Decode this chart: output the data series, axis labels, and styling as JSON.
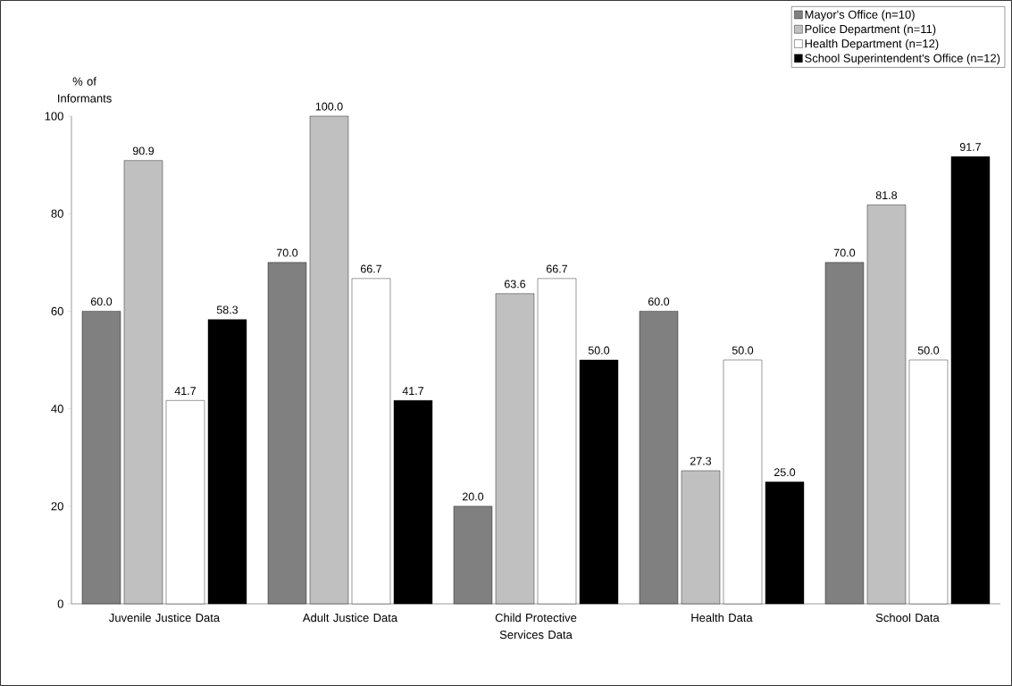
{
  "chart_data": {
    "type": "bar",
    "ylabel": "% of Informants",
    "categories": [
      "Juvenile Justice Data",
      "Adult Justice Data",
      "Child Protective Services Data",
      "Health Data",
      "School Data"
    ],
    "series": [
      {
        "name": "Mayor's Office (n=10)",
        "color": "#808080",
        "values": [
          60.0,
          70.0,
          20.0,
          60.0,
          70.0
        ],
        "value_labels": [
          "60.0",
          "70.0",
          "20.0",
          "60.0",
          "70.0"
        ]
      },
      {
        "name": "Police Department (n=11)",
        "color": "#c0c0c0",
        "values": [
          90.9,
          100.0,
          63.6,
          27.3,
          81.8
        ],
        "value_labels": [
          "90.9",
          "100.0",
          "63.6",
          "27.3",
          "81.8"
        ]
      },
      {
        "name": "Health Department (n=12)",
        "color": "#ffffff",
        "values": [
          41.7,
          66.7,
          66.7,
          50.0,
          50.0
        ],
        "value_labels": [
          "41.7",
          "66.7",
          "66.7",
          "50.0",
          "50.0"
        ]
      },
      {
        "name": "School Superintendent's Office (n=12)",
        "color": "#000000",
        "values": [
          58.3,
          41.7,
          50.0,
          25.0,
          91.7
        ],
        "value_labels": [
          "58.3",
          "41.7",
          "50.0",
          "25.0",
          "91.7"
        ]
      }
    ],
    "ylim": [
      0,
      100
    ],
    "yticks": [
      0,
      20,
      40,
      60,
      80,
      100
    ],
    "grid": false,
    "legend": "top right"
  }
}
